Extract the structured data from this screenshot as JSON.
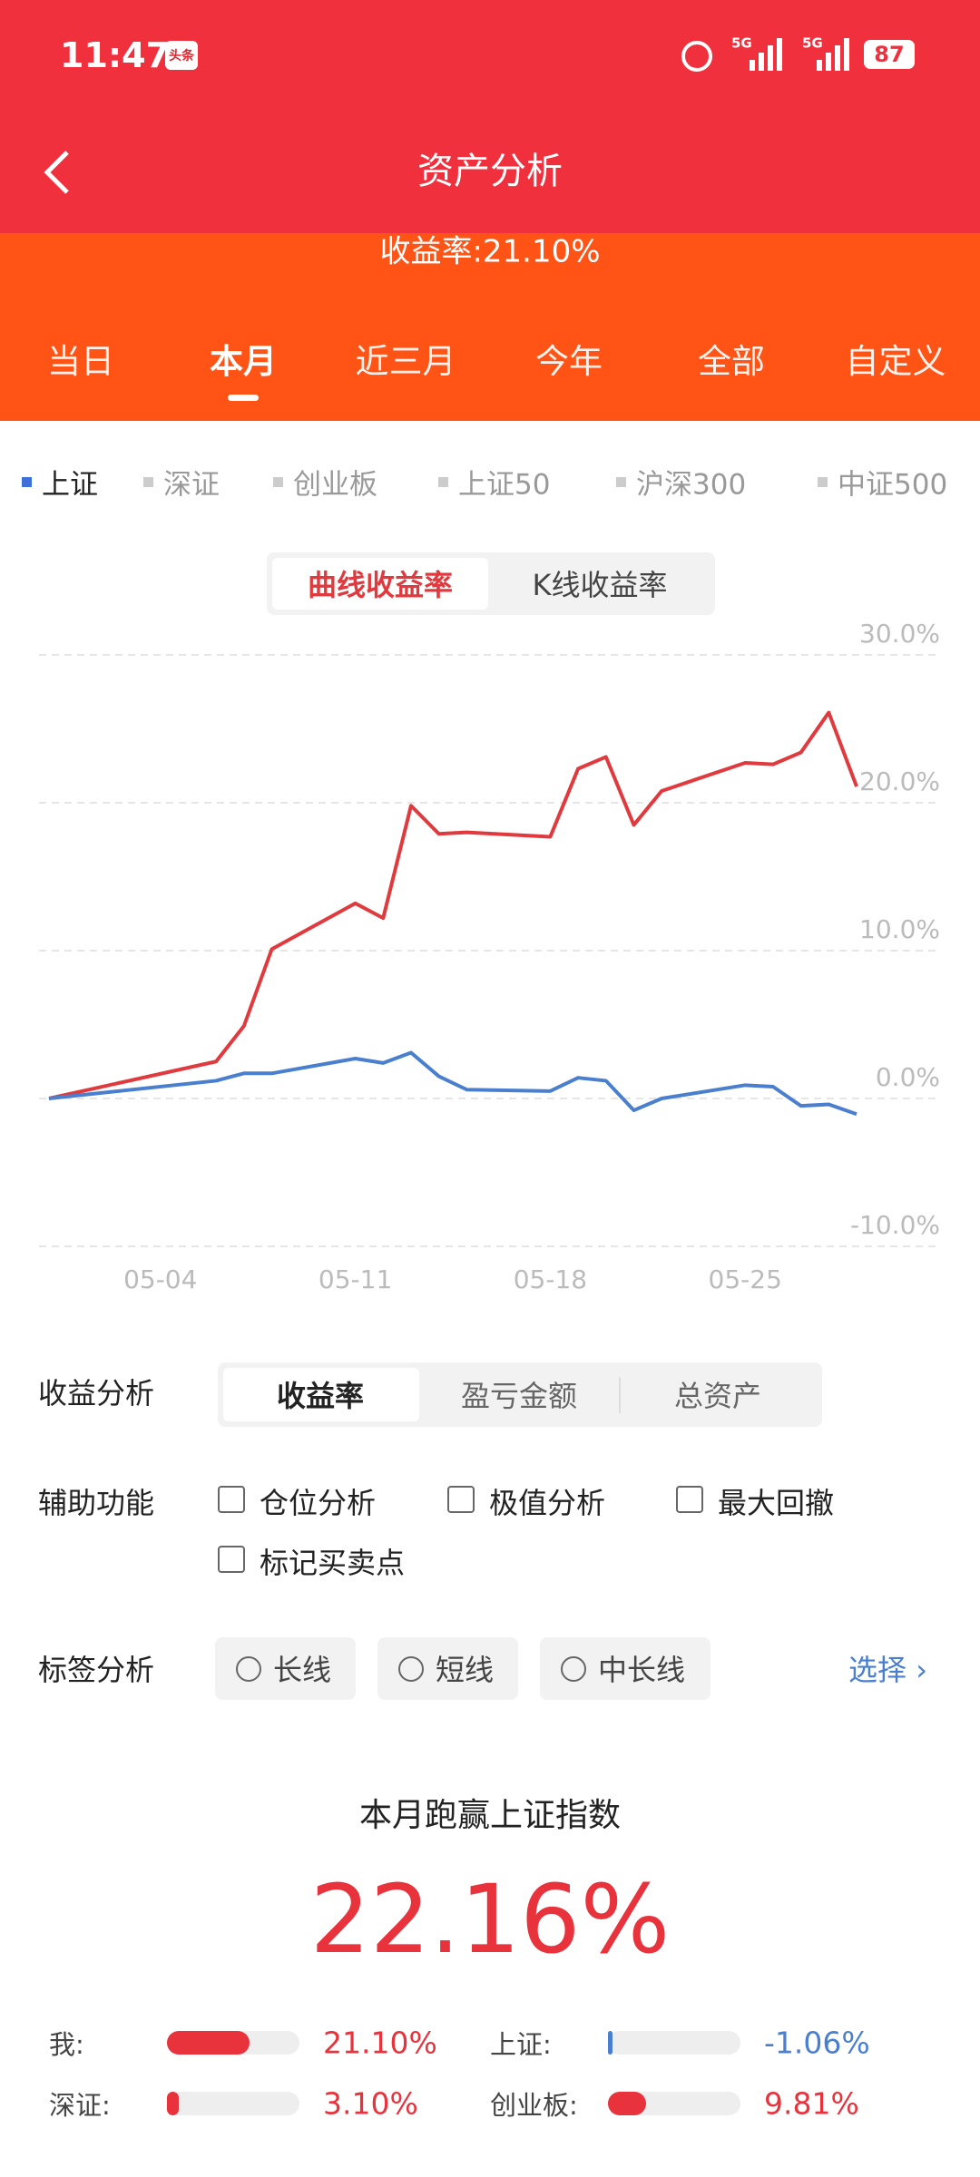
{
  "status": {
    "time": "11:47",
    "app_icon_label": "头条",
    "network": [
      "5G",
      "5G"
    ],
    "battery": "87"
  },
  "header": {
    "title": "资产分析",
    "summary": "收益率:21.10%"
  },
  "period_tabs": {
    "items": [
      "当日",
      "本月",
      "近三月",
      "今年",
      "全部",
      "自定义"
    ],
    "active": 1
  },
  "index_tabs": {
    "items": [
      "上证",
      "深证",
      "创业板",
      "上证50",
      "沪深300",
      "中证500"
    ],
    "active": 0
  },
  "chart_toggle": {
    "items": [
      "曲线收益率",
      "K线收益率"
    ],
    "active": 0
  },
  "chart_data": {
    "type": "line",
    "x": [
      "04-30",
      "05-06",
      "05-07",
      "05-08",
      "05-11",
      "05-12",
      "05-13",
      "05-14",
      "05-15",
      "05-18",
      "05-19",
      "05-20",
      "05-21",
      "05-22",
      "05-25",
      "05-26",
      "05-27",
      "05-28",
      "05-29"
    ],
    "series": [
      {
        "color": "#e03a3e",
        "values": [
          0,
          2.5,
          4.9,
          10.1,
          13.2,
          12.2,
          19.8,
          17.9,
          18,
          17.7,
          22.3,
          23.1,
          18.5,
          20.8,
          22.7,
          22.6,
          23.4,
          26.1,
          21.1
        ]
      },
      {
        "color": "#4a7fcf",
        "values": [
          0,
          1.2,
          1.7,
          1.7,
          2.7,
          2.4,
          3.1,
          1.5,
          0.6,
          0.5,
          1.4,
          1.2,
          -0.8,
          0,
          0.9,
          0.8,
          -0.5,
          -0.4,
          -1.06
        ]
      }
    ],
    "xlim": [
      "04-30",
      "05-29"
    ],
    "xticks": [
      "05-04",
      "05-11",
      "05-18",
      "05-25"
    ],
    "ylim": [
      -10,
      30
    ],
    "yticks": [
      {
        "value": 30,
        "label": "30.0%"
      },
      {
        "value": 20,
        "label": "20.0%"
      },
      {
        "value": 10,
        "label": "10.0%"
      },
      {
        "value": 0,
        "label": "0.0%"
      },
      {
        "value": -10,
        "label": "-10.0%"
      }
    ],
    "grid": true
  },
  "analysis": {
    "label": "收益分析",
    "items": [
      "收益率",
      "盈亏金额",
      "总资产"
    ],
    "active": 0
  },
  "aux": {
    "label": "辅助功能",
    "items": [
      "仓位分析",
      "极值分析",
      "最大回撤",
      "标记买卖点"
    ]
  },
  "tags": {
    "label": "标签分析",
    "items": [
      "长线",
      "短线",
      "中长线"
    ],
    "action": "选择"
  },
  "result": {
    "title": "本月跑赢上证指数",
    "value": "22.16%"
  },
  "comparison": [
    {
      "label": "我:",
      "value": 21.1,
      "value_label": "21.10%",
      "color": "#e8323c"
    },
    {
      "label": "上证:",
      "value": -1.06,
      "value_label": "-1.06%",
      "color": "#4a7fcf"
    },
    {
      "label": "深证:",
      "value": 3.1,
      "value_label": "3.10%",
      "color": "#e8323c"
    },
    {
      "label": "创业板:",
      "value": 9.81,
      "value_label": "9.81%",
      "color": "#e8323c"
    }
  ]
}
